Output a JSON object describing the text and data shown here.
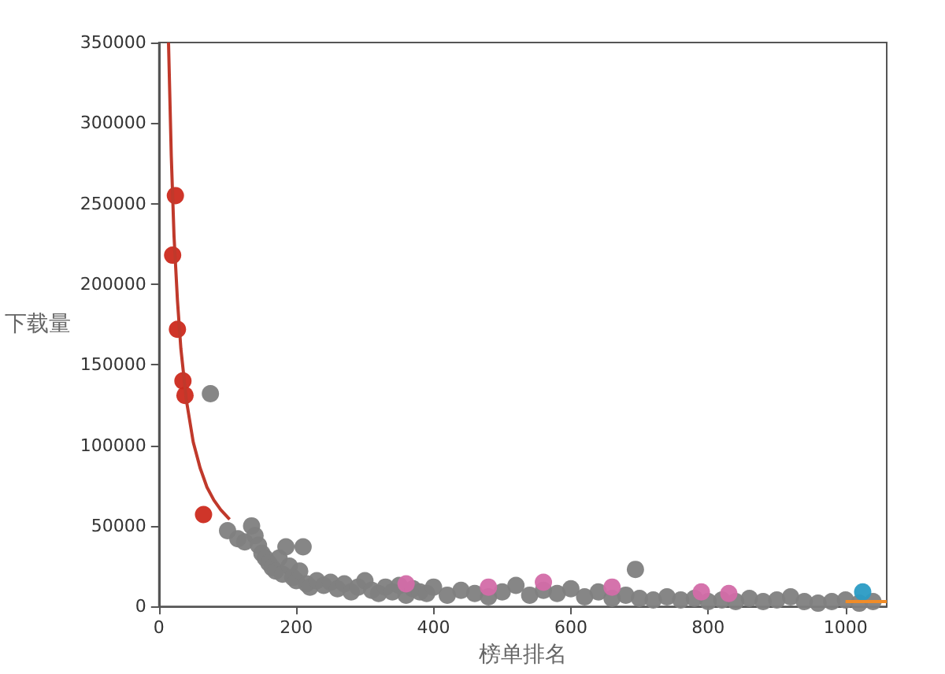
{
  "chart_data": {
    "type": "scatter",
    "xlabel": "榜单排名",
    "ylabel": "下载量",
    "xlim": [
      0,
      1060
    ],
    "ylim": [
      0,
      350000
    ],
    "xticks": [
      0,
      200,
      400,
      600,
      800,
      1000
    ],
    "yticks": [
      0,
      50000,
      100000,
      150000,
      200000,
      250000,
      300000,
      350000
    ],
    "grid": false,
    "marker": "circle",
    "series": [
      {
        "color": "#808080",
        "x": [
          75,
          100,
          115,
          125,
          135,
          140,
          145,
          150,
          155,
          160,
          165,
          170,
          175,
          180,
          185,
          190,
          195,
          200,
          205,
          210,
          215,
          220,
          230,
          240,
          250,
          260,
          270,
          280,
          290,
          300,
          310,
          320,
          330,
          340,
          350,
          360,
          370,
          380,
          390,
          400,
          420,
          440,
          460,
          480,
          500,
          520,
          540,
          560,
          580,
          600,
          620,
          640,
          660,
          680,
          694,
          700,
          720,
          740,
          760,
          780,
          800,
          820,
          840,
          860,
          880,
          900,
          920,
          940,
          960,
          980,
          1000,
          1020,
          1040
        ],
        "values": [
          132000,
          47000,
          42000,
          40000,
          50000,
          44000,
          38000,
          33000,
          30000,
          27000,
          24000,
          22000,
          30000,
          20000,
          37000,
          25000,
          18000,
          16000,
          22000,
          37000,
          14000,
          12000,
          16000,
          13000,
          15000,
          11000,
          14000,
          9000,
          12000,
          16000,
          10000,
          8000,
          12000,
          9000,
          13000,
          7000,
          11000,
          9000,
          8000,
          12000,
          7000,
          10000,
          8000,
          6000,
          9000,
          13000,
          7000,
          10000,
          8000,
          11000,
          6000,
          9000,
          5000,
          7000,
          23000,
          5000,
          4000,
          6000,
          4000,
          5000,
          3000,
          4000,
          3000,
          5000,
          3000,
          4000,
          6000,
          3000,
          2000,
          3000,
          4000,
          2000,
          3000
        ]
      },
      {
        "color": "#d36ba8",
        "x": [
          360,
          480,
          560,
          660,
          790,
          830
        ],
        "values": [
          14000,
          12000,
          15000,
          12000,
          9000,
          8000
        ]
      },
      {
        "color": "#cc2a1e",
        "x": [
          20,
          24,
          27,
          35,
          38,
          65
        ],
        "values": [
          218000,
          255000,
          172000,
          140000,
          131000,
          57000
        ]
      },
      {
        "color": "#2a9bc4",
        "x": [
          1025
        ],
        "values": [
          9000
        ]
      },
      {
        "type": "line",
        "color": "#f08c28",
        "marker": "none",
        "x": [
          1000,
          1060
        ],
        "values": [
          3000,
          3000
        ]
      },
      {
        "type": "line",
        "color": "#c0392b",
        "marker": "none",
        "x": [
          14,
          18,
          22,
          27,
          32,
          40,
          50,
          60,
          70,
          80,
          90,
          103
        ],
        "values": [
          350000,
          280000,
          230000,
          190000,
          160000,
          128000,
          102000,
          86000,
          74000,
          66000,
          60000,
          54000
        ]
      }
    ]
  }
}
